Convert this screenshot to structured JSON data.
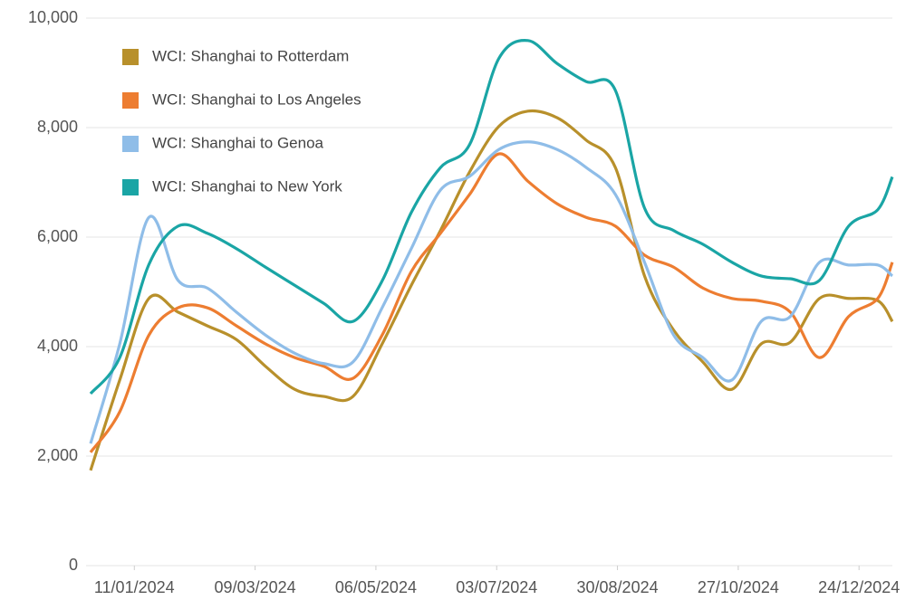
{
  "chart_data": {
    "type": "line",
    "x": [
      "21/12/2023",
      "04/01/2024",
      "18/01/2024",
      "01/02/2024",
      "15/02/2024",
      "29/02/2024",
      "14/03/2024",
      "28/03/2024",
      "11/04/2024",
      "25/04/2024",
      "09/05/2024",
      "23/05/2024",
      "06/06/2024",
      "20/06/2024",
      "04/07/2024",
      "18/07/2024",
      "01/08/2024",
      "15/08/2024",
      "29/08/2024",
      "12/09/2024",
      "26/09/2024",
      "10/10/2024",
      "24/10/2024",
      "07/11/2024",
      "21/11/2024",
      "05/12/2024",
      "19/12/2024",
      "02/01/2025",
      "09/01/2025"
    ],
    "series": [
      {
        "name": "WCI: Shanghai to Rotterdam",
        "color": "#b8902b",
        "values": [
          1740,
          3390,
          4880,
          4630,
          4380,
          4130,
          3640,
          3220,
          3090,
          3090,
          4050,
          5120,
          6120,
          7190,
          8020,
          8300,
          8180,
          7770,
          7270,
          5290,
          4300,
          3720,
          3220,
          4050,
          4080,
          4880,
          4880,
          4840,
          4460
        ]
      },
      {
        "name": "WCI: Shanghai to Los Angeles",
        "color": "#ed7d31",
        "values": [
          2070,
          2810,
          4210,
          4710,
          4710,
          4380,
          4050,
          3800,
          3640,
          3420,
          4210,
          5370,
          6070,
          6780,
          7520,
          7020,
          6610,
          6360,
          6200,
          5670,
          5450,
          5070,
          4880,
          4830,
          4630,
          3800,
          4550,
          4880,
          5540
        ]
      },
      {
        "name": "WCI: Shanghai to Genoa",
        "color": "#8fbde8",
        "values": [
          2230,
          4050,
          6360,
          5210,
          5070,
          4630,
          4210,
          3880,
          3690,
          3720,
          4710,
          5790,
          6860,
          7110,
          7600,
          7740,
          7600,
          7270,
          6780,
          5540,
          4210,
          3800,
          3390,
          4460,
          4550,
          5540,
          5490,
          5490,
          5290
        ]
      },
      {
        "name": "WCI: Shanghai to New York",
        "color": "#1aa5a5",
        "values": [
          3140,
          3800,
          5500,
          6200,
          6070,
          5790,
          5450,
          5120,
          4790,
          4460,
          5200,
          6450,
          7270,
          7690,
          9260,
          9590,
          9170,
          8840,
          8680,
          6530,
          6120,
          5870,
          5540,
          5290,
          5240,
          5210,
          6200,
          6500,
          7100
        ]
      }
    ],
    "xlim": [
      "21/12/2023",
      "09/01/2025"
    ],
    "xticks": [
      "11/01/2024",
      "09/03/2024",
      "06/05/2024",
      "03/07/2024",
      "30/08/2024",
      "27/10/2024",
      "24/12/2024"
    ],
    "ylim": [
      0,
      10000
    ],
    "yticks": [
      0,
      {
        "value": 2000,
        "label": "2,000"
      },
      {
        "value": 4000,
        "label": "4,000"
      },
      {
        "value": 6000,
        "label": "6,000"
      },
      {
        "value": 8000,
        "label": "8,000"
      },
      {
        "value": 10000,
        "label": "10,000"
      }
    ],
    "grid": true,
    "legend": "upper left"
  }
}
